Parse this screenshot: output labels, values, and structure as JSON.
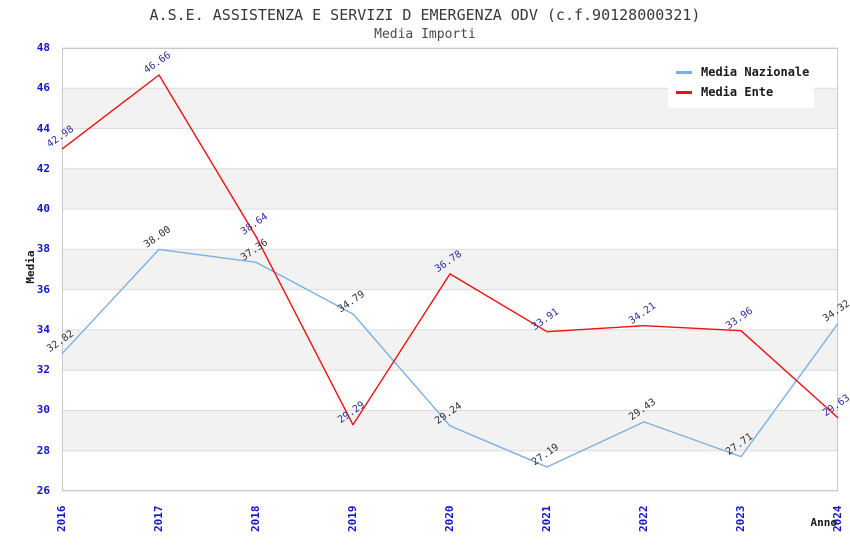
{
  "title": "A.S.E. ASSISTENZA E SERVIZI D EMERGENZA ODV (c.f.90128000321)",
  "subtitle": "Media Importi",
  "chart_data": {
    "type": "line",
    "x": [
      "2016",
      "2017",
      "2018",
      "2019",
      "2020",
      "2021",
      "2022",
      "2023",
      "2024"
    ],
    "xlabel": "Anno",
    "ylabel": "Media",
    "ylim": [
      26,
      48
    ],
    "ytick_step": 2,
    "grid": "horizontal-bands-alternating",
    "legend_position": "top-right",
    "label_decimals": 2,
    "series": [
      {
        "name": "Media Nazionale",
        "color": "#7cb0e2",
        "label_color": "#303030",
        "values": [
          32.82,
          38.0,
          37.36,
          34.79,
          29.24,
          27.19,
          29.43,
          27.71,
          34.32
        ]
      },
      {
        "name": "Media Ente",
        "color": "#ef1010",
        "label_color": "#2d2d9f",
        "values": [
          42.98,
          46.66,
          38.64,
          29.29,
          36.78,
          33.91,
          34.21,
          33.96,
          29.63
        ]
      }
    ],
    "colors": {
      "band_fill": "#f2f2f2",
      "gridline": "#dcdcdc",
      "plot_border": "#c9c9c9",
      "tick_label": "#1515cf",
      "title_text": "#383838"
    }
  }
}
